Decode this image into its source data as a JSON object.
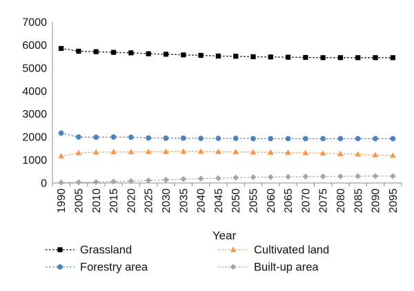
{
  "chart_data": {
    "type": "line",
    "xlabel": "Year",
    "ylabel": "",
    "ylim": [
      0,
      7000
    ],
    "yticks": [
      0,
      1000,
      2000,
      3000,
      4000,
      5000,
      6000,
      7000
    ],
    "grid": false,
    "legend_position": "bottom",
    "categories": [
      "1990",
      "2005",
      "2010",
      "2015",
      "2020",
      "2025",
      "2030",
      "2035",
      "2040",
      "2045",
      "2050",
      "2055",
      "2060",
      "2065",
      "2070",
      "2075",
      "2080",
      "2085",
      "2090",
      "2095"
    ],
    "series": [
      {
        "name": "Grassland",
        "color": "#000000",
        "marker": "square",
        "values": [
          5850,
          5730,
          5710,
          5680,
          5660,
          5620,
          5600,
          5570,
          5550,
          5520,
          5510,
          5490,
          5480,
          5470,
          5460,
          5450,
          5450,
          5450,
          5450,
          5450
        ]
      },
      {
        "name": "Forestry area",
        "color": "#4f81bd",
        "marker": "circle",
        "values": [
          2170,
          2000,
          1990,
          2000,
          1990,
          1960,
          1950,
          1950,
          1940,
          1940,
          1940,
          1930,
          1930,
          1930,
          1930,
          1930,
          1930,
          1930,
          1930,
          1930
        ]
      },
      {
        "name": "Cultivated land",
        "color": "#f79646",
        "marker": "triangle",
        "values": [
          1170,
          1310,
          1340,
          1350,
          1350,
          1360,
          1360,
          1370,
          1370,
          1360,
          1350,
          1340,
          1330,
          1320,
          1310,
          1290,
          1270,
          1250,
          1220,
          1200
        ]
      },
      {
        "name": "Built-up area",
        "color": "#a6a6a6",
        "marker": "diamond",
        "values": [
          20,
          30,
          40,
          60,
          80,
          110,
          140,
          170,
          190,
          210,
          230,
          250,
          260,
          270,
          280,
          285,
          290,
          295,
          300,
          300
        ]
      }
    ]
  }
}
